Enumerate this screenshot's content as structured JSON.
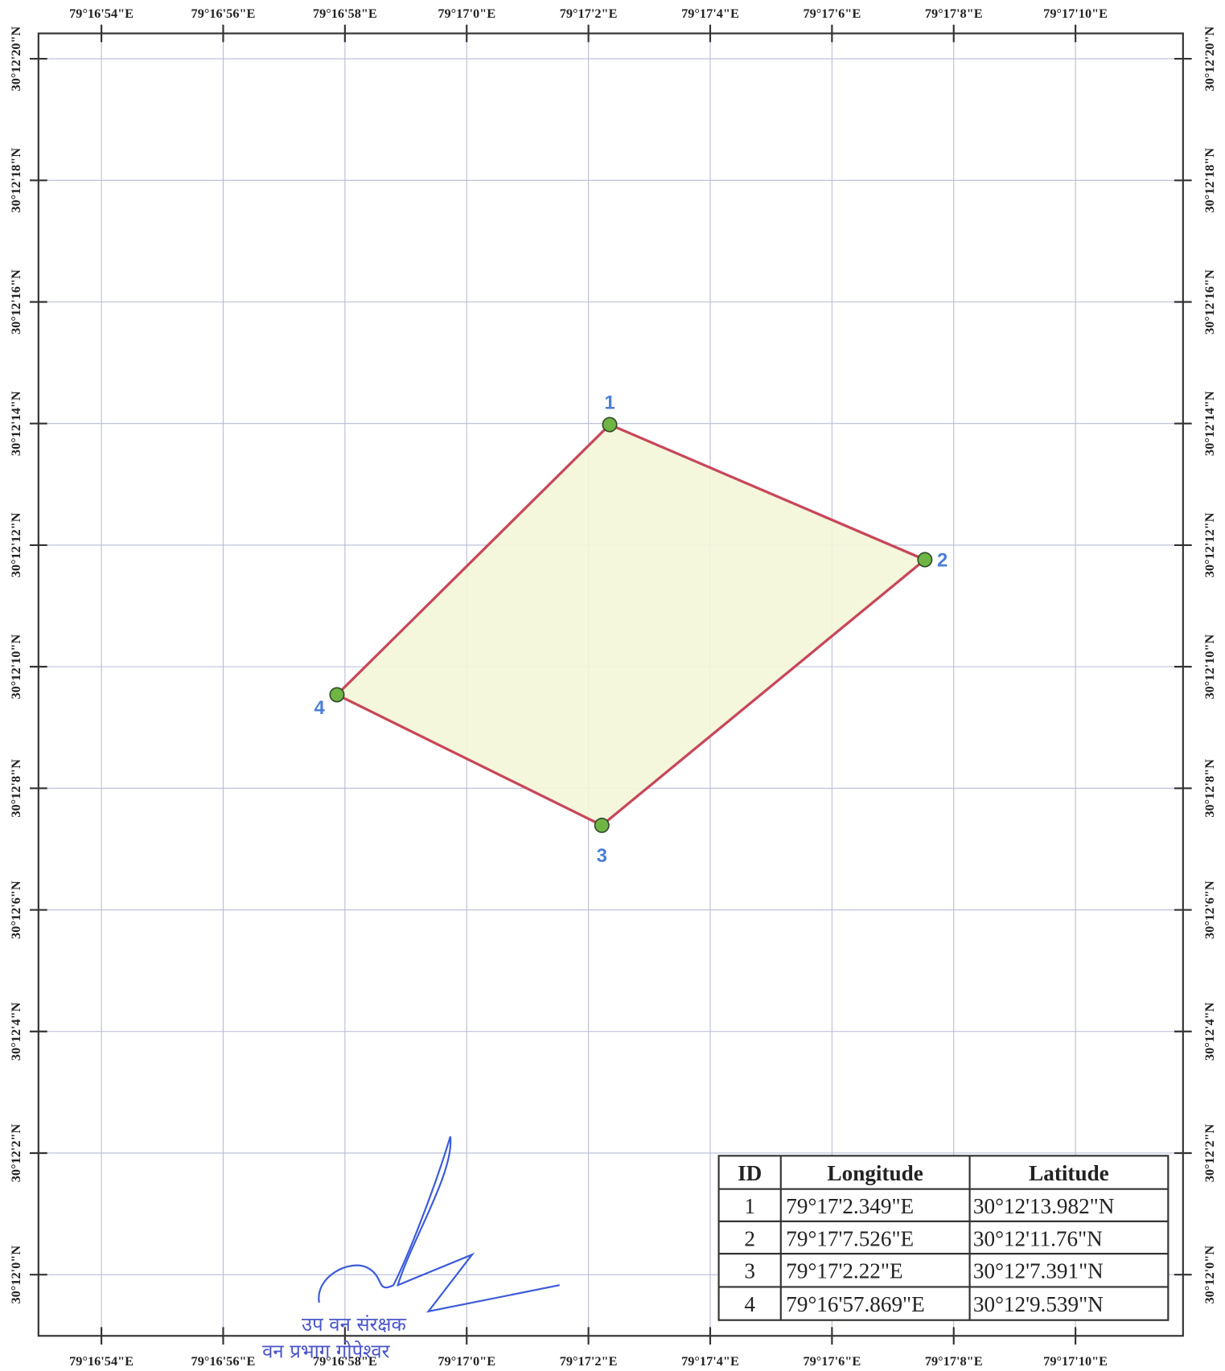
{
  "map": {
    "x_labels": [
      "79°16'54\"E",
      "79°16'56\"E",
      "79°16'58\"E",
      "79°17'0\"E",
      "79°17'2\"E",
      "79°17'4\"E",
      "79°17'6\"E",
      "79°17'8\"E",
      "79°17'10\"E"
    ],
    "y_labels": [
      "30°12'20\"N",
      "30°12'18\"N",
      "30°12'16\"N",
      "30°12'14\"N",
      "30°12'12\"N",
      "30°12'10\"N",
      "30°12'8\"N",
      "30°12'6\"N",
      "30°12'4\"N",
      "30°12'2\"N",
      "30°12'0\"N"
    ],
    "points": [
      {
        "id": "1",
        "lon": "79°17'2.349\"E",
        "lat": "30°12'13.982\"N"
      },
      {
        "id": "2",
        "lon": "79°17'7.526\"E",
        "lat": "30°12'11.76\"N"
      },
      {
        "id": "3",
        "lon": "79°17'2.22\"E",
        "lat": "30°12'7.391\"N"
      },
      {
        "id": "4",
        "lon": "79°16'57.869\"E",
        "lat": "30°12'9.539\"N"
      }
    ],
    "table_header": [
      "ID",
      "Longitude",
      "Latitude"
    ],
    "stamp": [
      "उप वन संरक्षक",
      "वन प्रभाग गोपेश्वर"
    ]
  }
}
